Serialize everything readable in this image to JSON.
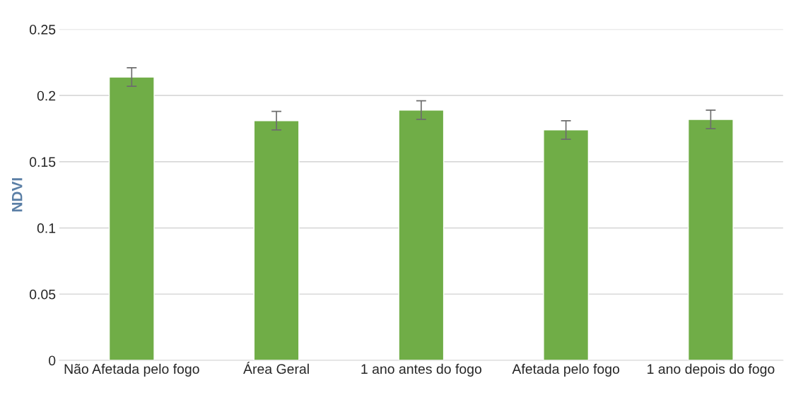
{
  "chart_data": {
    "type": "bar",
    "ylabel": "NDVI",
    "categories": [
      "Não Afetada pelo fogo",
      "Área Geral",
      "1 ano antes do fogo",
      "Afetada pelo fogo",
      "1 ano depois do fogo"
    ],
    "values": [
      0.214,
      0.181,
      0.189,
      0.174,
      0.182
    ],
    "errors": [
      0.007,
      0.007,
      0.007,
      0.007,
      0.007
    ],
    "color": "#70ad47",
    "ylim": [
      0,
      0.25
    ],
    "yticks": [
      0,
      0.05,
      0.1,
      0.15,
      0.2,
      0.25
    ],
    "grid": "y"
  }
}
